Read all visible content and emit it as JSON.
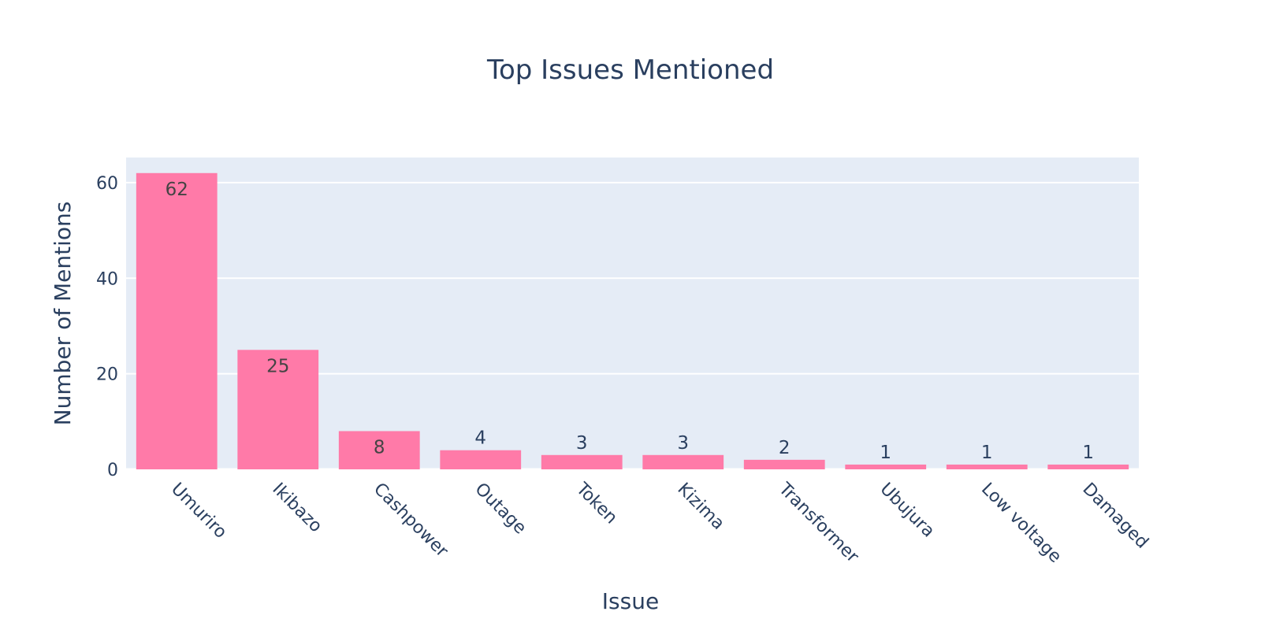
{
  "chart_data": {
    "type": "bar",
    "title": "Top Issues Mentioned",
    "xlabel": "Issue",
    "ylabel": "Number of Mentions",
    "categories": [
      "Umuriro",
      "Ikibazo",
      "Cashpower",
      "Outage",
      "Token",
      "Kizima",
      "Transformer",
      "Ubujura",
      "Low voltage",
      "Damaged"
    ],
    "values": [
      62,
      25,
      8,
      4,
      3,
      3,
      2,
      1,
      1,
      1
    ],
    "ylim": [
      0,
      65.26
    ],
    "yticks": [
      0,
      20,
      40,
      60
    ],
    "grid": true,
    "legend": "none",
    "colors": {
      "bar": "#ff7aa8",
      "plot_bg": "#e5ecf6",
      "grid": "#ffffff",
      "text": "#2a3f5f"
    }
  }
}
